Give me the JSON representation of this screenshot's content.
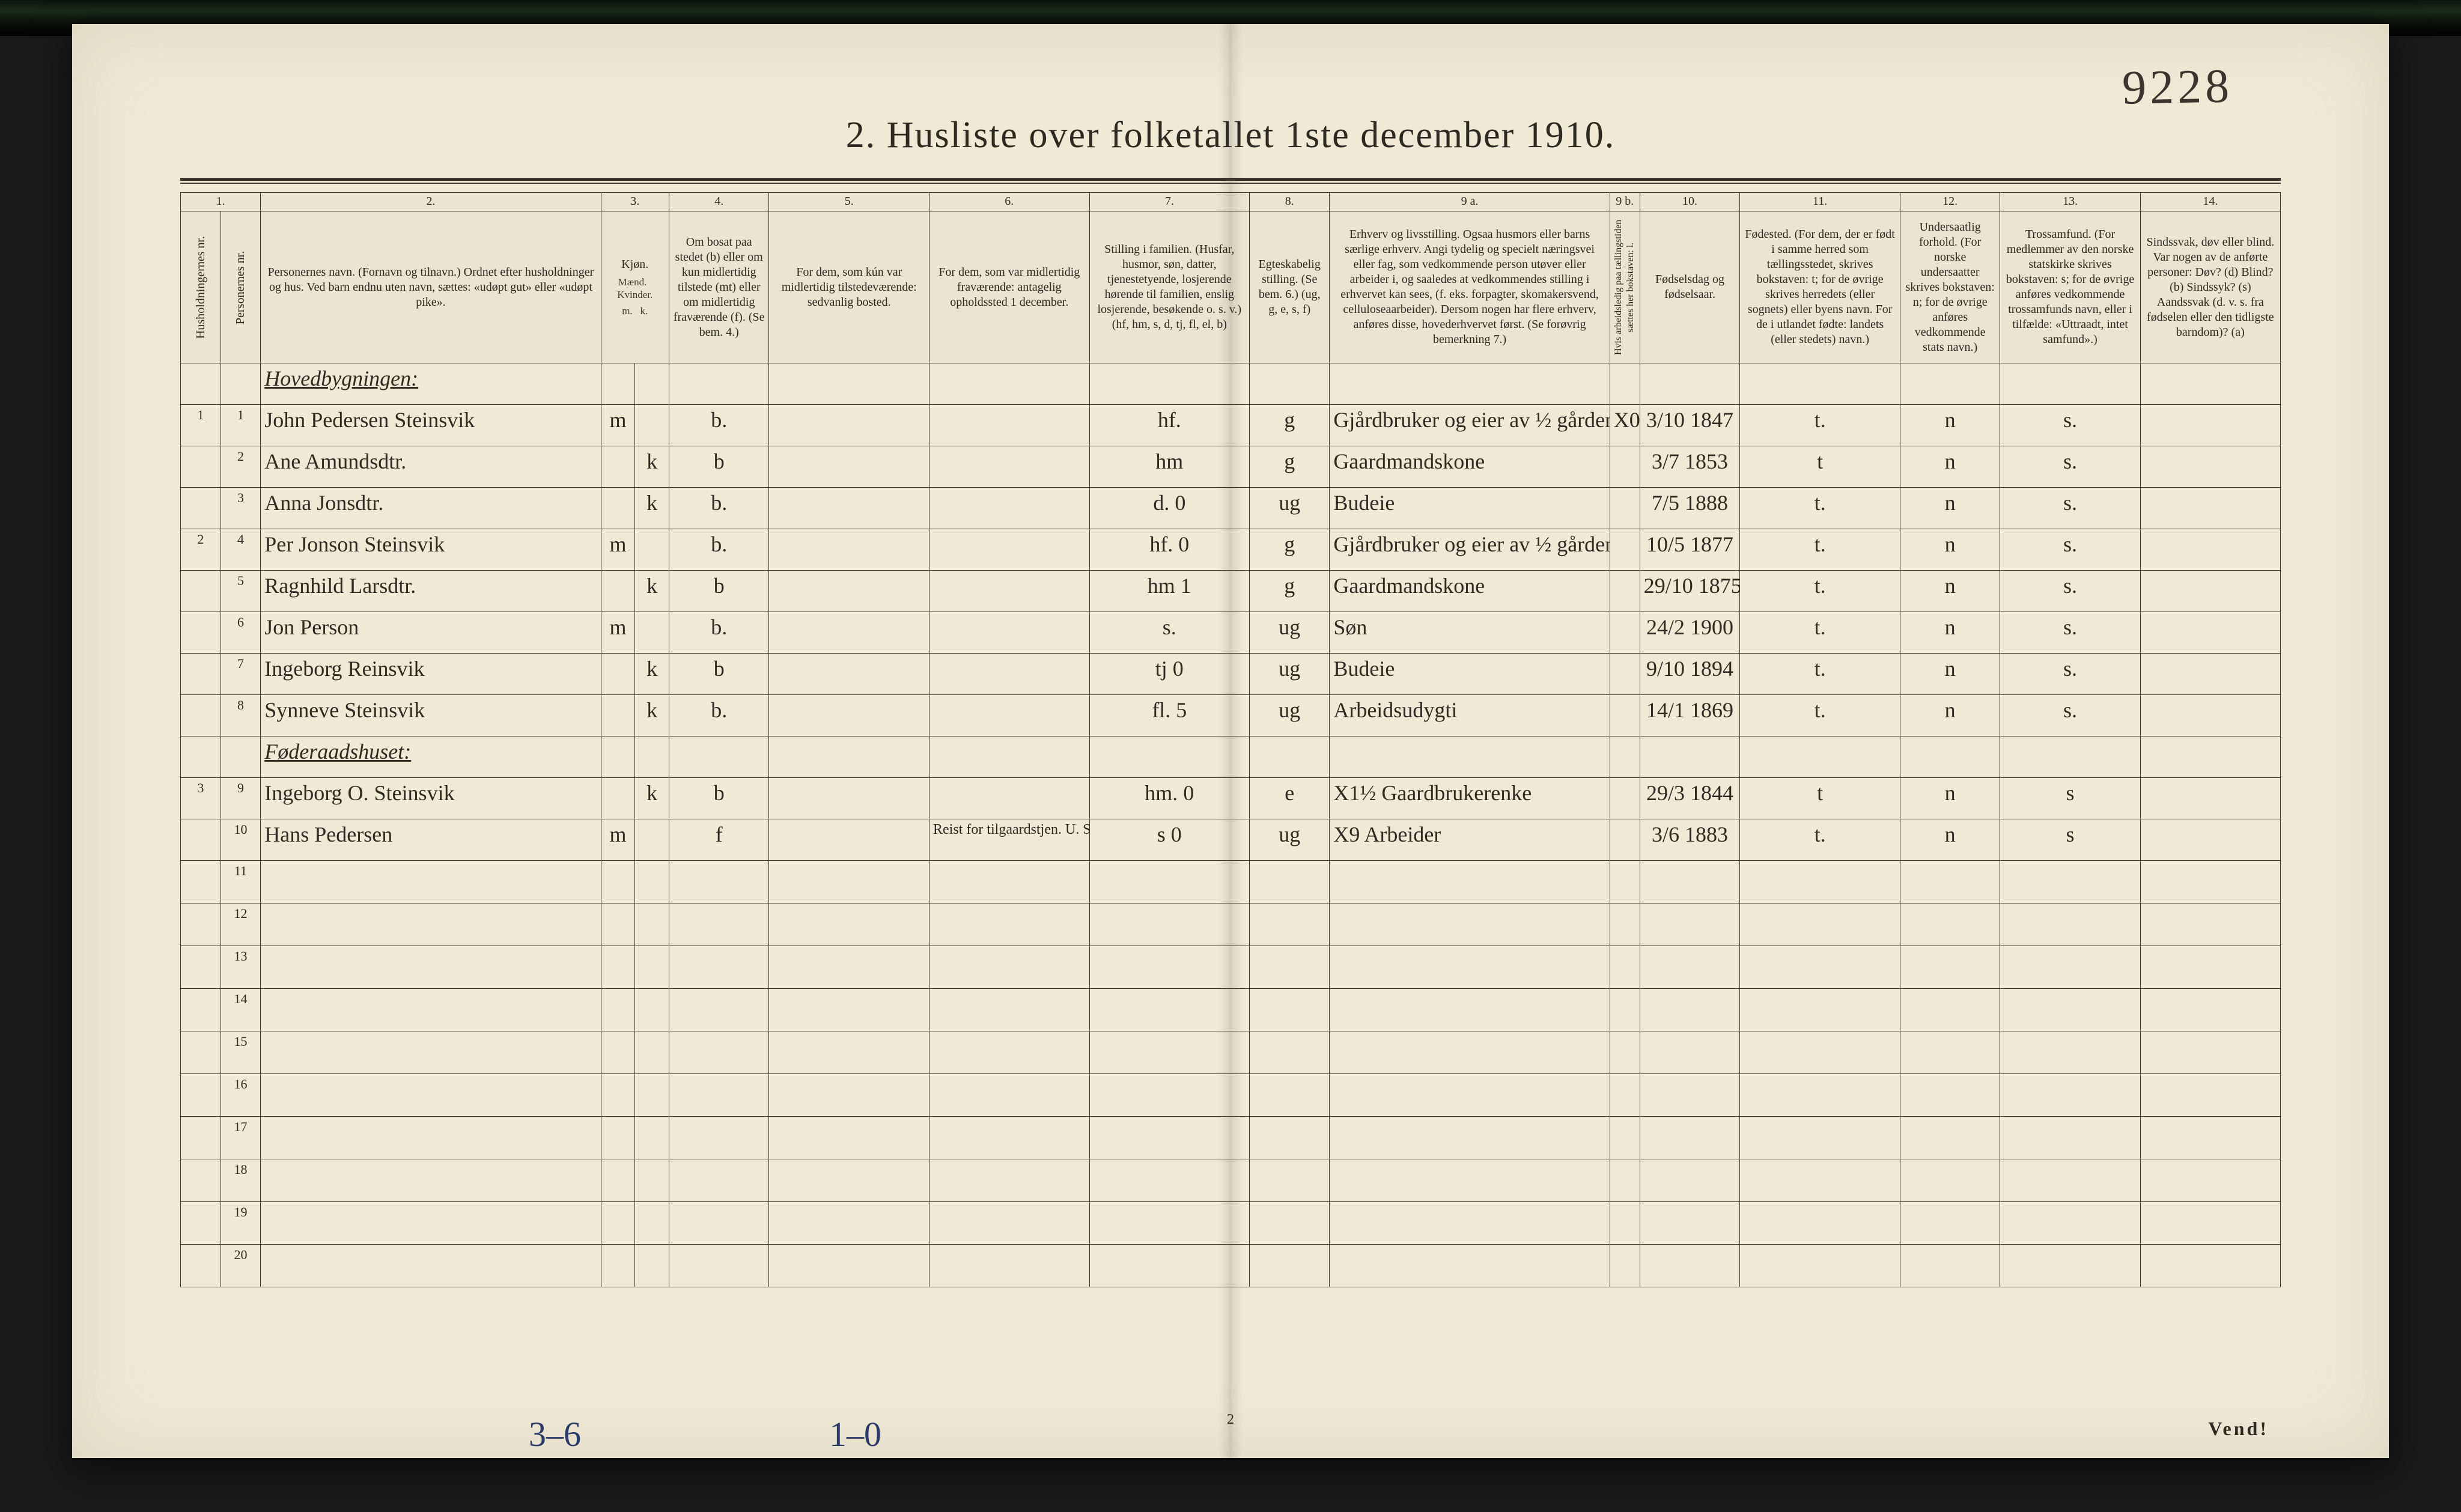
{
  "page": {
    "hand_number": "9228",
    "title": "2.  Husliste over folketallet 1ste december 1910.",
    "footer_page": "2",
    "vend": "Vend!",
    "tally_a": "3–6",
    "tally_b": "1–0",
    "colors": {
      "paper": "#efe9d6",
      "ink": "#2d2a22",
      "rule": "#3a362e",
      "hand_blue": "#2a3a6a"
    }
  },
  "header_numbers": [
    "1.",
    "",
    "2.",
    "3.",
    "",
    "4.",
    "5.",
    "6.",
    "7.",
    "8.",
    "9 a.",
    "9 b.",
    "10.",
    "11.",
    "12.",
    "13.",
    "14."
  ],
  "header_labels": {
    "c1": "Husholdningernes nr.",
    "c2": "Personernes nr.",
    "c3": "Personernes navn.\n(Fornavn og tilnavn.)\nOrdnet efter husholdninger og hus.\nVed barn endnu uten navn, sættes: «udøpt gut» eller «udøpt pike».",
    "c4": "Kjøn.",
    "c4a": "Mænd.",
    "c4b": "Kvinder.",
    "c5": "Om bosat paa stedet (b) eller om kun midlertidig tilstede (mt) eller om midlertidig fraværende (f).  (Se bem. 4.)",
    "c6": "For dem, som kún var midlertidig tilstedeværende:  sedvanlig bosted.",
    "c7": "For dem, som var midlertidig fraværende:  antagelig opholdssted 1 december.",
    "c8": "Stilling i familien.  (Husfar, husmor, søn, datter, tjenestetyende, losjerende hørende til familien, enslig losjerende, besøkende o. s. v.)  (hf, hm, s, d, tj, fl, el, b)",
    "c9": "Egteskabelig stilling.  (Se bem. 6.)  (ug, g, e, s, f)",
    "c10": "Erhverv og livsstilling.  Ogsaa husmors eller barns særlige erhverv.  Angi tydelig og specielt næringsvei eller fag, som vedkommende person utøver eller arbeider i, og saaledes at vedkommendes stilling i erhvervet kan sees, (f. eks. forpagter, skomakersvend, celluloseaarbeider).  Dersom nogen har flere erhverv, anføres disse, hovederhvervet først.  (Se forøvrig bemerkning 7.)",
    "c11": "Hvis arbeidsledig paa tællingstiden sættes her bokstaven: l.",
    "c12": "Fødselsdag og fødselsaar.",
    "c13": "Fødested.  (For dem, der er født i samme herred som tællingsstedet, skrives bokstaven: t; for de øvrige skrives herredets (eller sognets) eller byens navn.  For de i utlandet fødte: landets (eller stedets) navn.)",
    "c14": "Undersaatlig forhold.  (For norske undersaatter skrives bokstaven: n; for de øvrige anføres vedkommende stats navn.)",
    "c15": "Trossamfund.  (For medlemmer av den norske statskirke skrives bokstaven: s; for de øvrige anføres vedkommende trossamfunds navn, eller i tilfælde: «Uttraadt, intet samfund».)",
    "c16": "Sindssvak, døv eller blind.  Var nogen av de anførte personer:  Døv? (d)  Blind? (b)  Sindssyk? (s)  Aandssvak (d. v. s. fra fødselen eller den tidligste barndom)? (a)"
  },
  "sections": [
    {
      "label": "Hovedbygningen:"
    },
    {
      "label": "Føderaadshuset:"
    }
  ],
  "rows": [
    {
      "hh": "1",
      "pn": "1",
      "name": "John Pedersen Steinsvik",
      "m": "m",
      "k": "",
      "res": "b.",
      "temp": "",
      "away": "",
      "fam": "hf.",
      "mar": "g",
      "occ": "Gjårdbruker og eier av ½ gården",
      "idle": "X0",
      "birth": "3/10 1847",
      "bplace": "t.",
      "nat": "n",
      "rel": "s.",
      "inf": ""
    },
    {
      "hh": "",
      "pn": "2",
      "name": "Ane Amundsdtr.",
      "m": "",
      "k": "k",
      "res": "b",
      "temp": "",
      "away": "",
      "fam": "hm",
      "mar": "g",
      "occ": "Gaardmandskone",
      "idle": "",
      "birth": "3/7 1853",
      "bplace": "t",
      "nat": "n",
      "rel": "s.",
      "inf": ""
    },
    {
      "hh": "",
      "pn": "3",
      "name": "Anna Jonsdtr.",
      "m": "",
      "k": "k",
      "res": "b.",
      "temp": "",
      "away": "",
      "fam": "d.   0",
      "mar": "ug",
      "occ": "Budeie",
      "idle": "",
      "birth": "7/5 1888",
      "bplace": "t.",
      "nat": "n",
      "rel": "s.",
      "inf": ""
    },
    {
      "hh": "2",
      "pn": "4",
      "name": "Per Jonson Steinsvik",
      "m": "m",
      "k": "",
      "res": "b.",
      "temp": "",
      "away": "",
      "fam": "hf.   0",
      "mar": "g",
      "occ": "Gjårdbruker og eier av ½ gården",
      "idle": "",
      "birth": "10/5 1877",
      "bplace": "t.",
      "nat": "n",
      "rel": "s.",
      "inf": ""
    },
    {
      "hh": "",
      "pn": "5",
      "name": "Ragnhild Larsdtr.",
      "m": "",
      "k": "k",
      "res": "b",
      "temp": "",
      "away": "",
      "fam": "hm   1",
      "mar": "g",
      "occ": "Gaardmandskone",
      "idle": "",
      "birth": "29/10 1875",
      "bplace": "t.",
      "nat": "n",
      "rel": "s.",
      "inf": ""
    },
    {
      "hh": "",
      "pn": "6",
      "name": "Jon Person",
      "m": "m",
      "k": "",
      "res": "b.",
      "temp": "",
      "away": "",
      "fam": "s.",
      "mar": "ug",
      "occ": "Søn",
      "idle": "",
      "birth": "24/2 1900",
      "bplace": "t.",
      "nat": "n",
      "rel": "s.",
      "inf": ""
    },
    {
      "hh": "",
      "pn": "7",
      "name": "Ingeborg Reinsvik",
      "m": "",
      "k": "k",
      "res": "b",
      "temp": "",
      "away": "",
      "fam": "tj   0",
      "mar": "ug",
      "occ": "Budeie",
      "idle": "",
      "birth": "9/10 1894",
      "bplace": "t.",
      "nat": "n",
      "rel": "s.",
      "inf": ""
    },
    {
      "hh": "",
      "pn": "8",
      "name": "Synneve Steinsvik",
      "m": "",
      "k": "k",
      "res": "b.",
      "temp": "",
      "away": "",
      "fam": "fl.   5",
      "mar": "ug",
      "occ": "Arbeidsudygti",
      "idle": "",
      "birth": "14/1 1869",
      "bplace": "t.",
      "nat": "n",
      "rel": "s.",
      "inf": ""
    },
    {
      "hh": "3",
      "pn": "9",
      "name": "Ingeborg O. Steinsvik",
      "m": "",
      "k": "k",
      "res": "b",
      "temp": "",
      "away": "",
      "fam": "hm.   0",
      "mar": "e",
      "occ": "X1½ Gaardbrukerenke",
      "idle": "",
      "birth": "29/3 1844",
      "bplace": "t",
      "nat": "n",
      "rel": "s",
      "inf": ""
    },
    {
      "hh": "",
      "pn": "10",
      "name": "Hans Pedersen",
      "m": "m",
      "k": "",
      "res": "f",
      "temp": "",
      "away": "Reist for tilgaardstjen. U. S. A.",
      "fam": "s   0",
      "mar": "ug",
      "occ": "X9 Arbeider",
      "idle": "",
      "birth": "3/6 1883",
      "bplace": "t.",
      "nat": "n",
      "rel": "s",
      "inf": ""
    }
  ],
  "blank_row_numbers": [
    "11",
    "12",
    "13",
    "14",
    "15",
    "16",
    "17",
    "18",
    "19",
    "20"
  ]
}
